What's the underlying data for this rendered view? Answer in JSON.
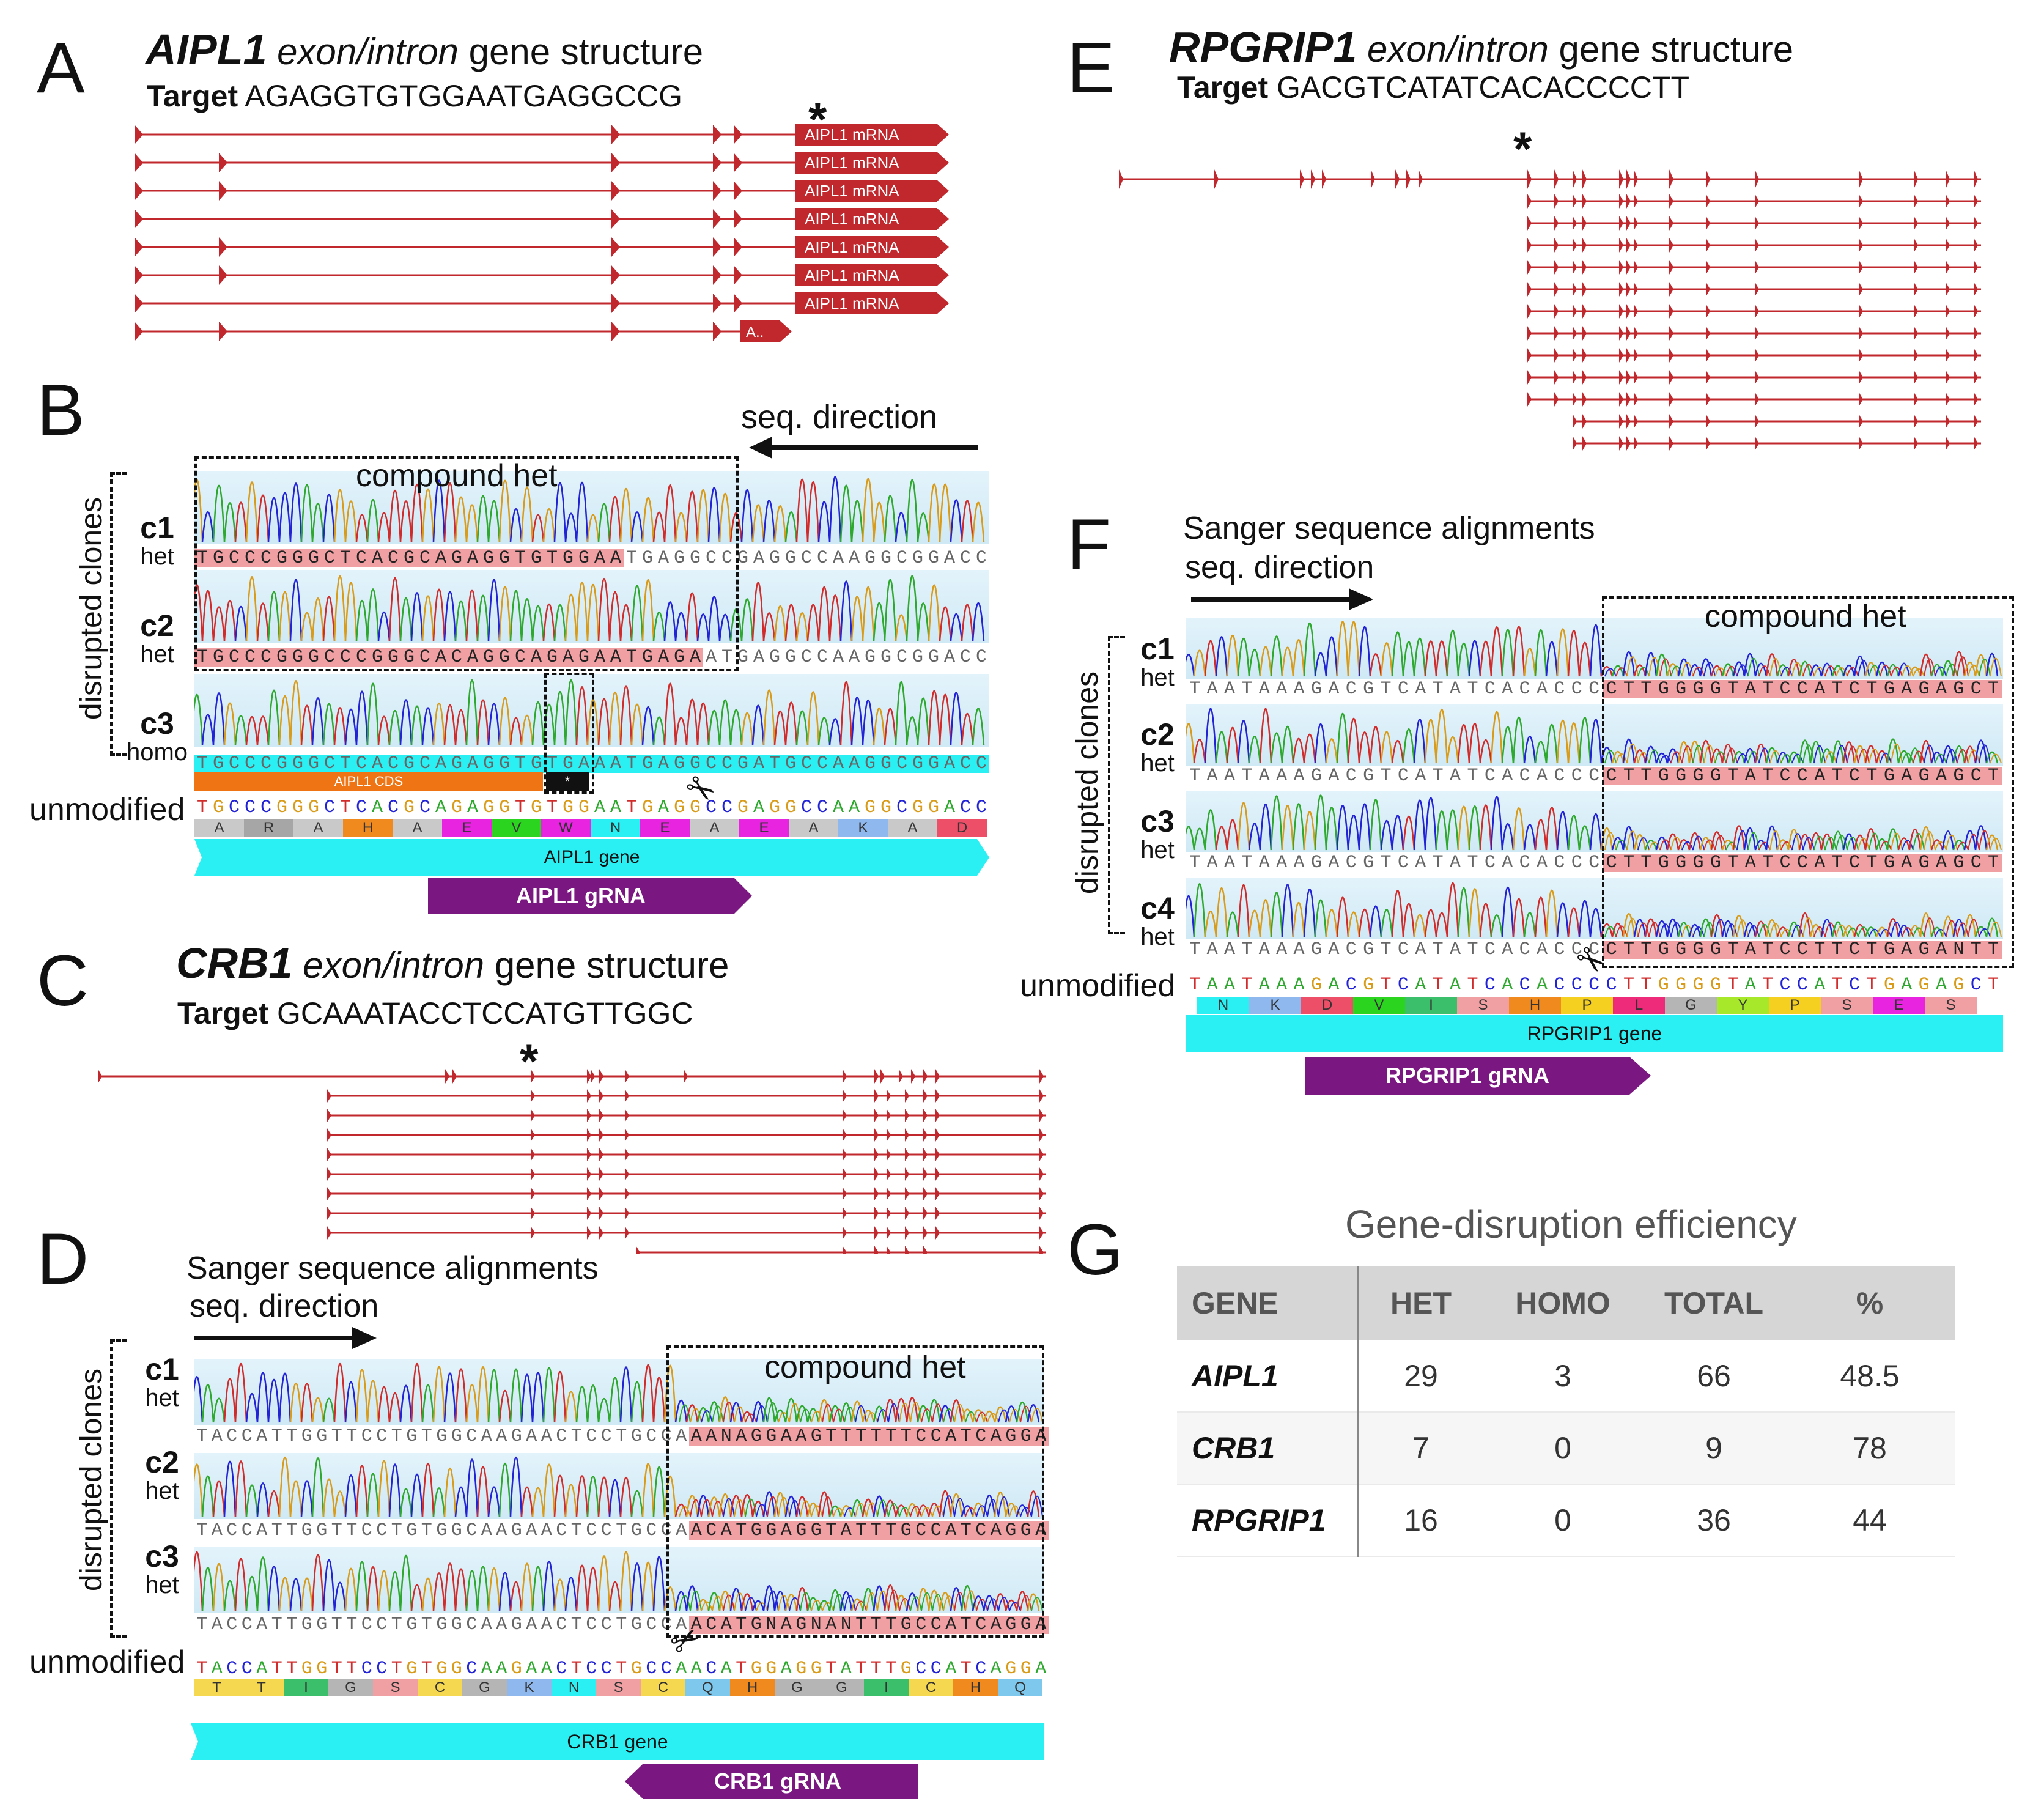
{
  "panels": {
    "A": {
      "label": "A",
      "gene": "AIPL1",
      "title_rest": "exon/intron",
      "title_tail": "gene structure",
      "target_label": "Target",
      "target_seq": "AGAGGTGTGGAATGAGGCCG",
      "mrna_label": "AIPL1 mRNA",
      "short_label": "A..",
      "star": "*"
    },
    "B": {
      "label": "B",
      "seq_direction": "seq. direction",
      "compound_het": "compound het",
      "disrupted": "disrupted clones",
      "unmodified": "unmodified",
      "clones": [
        {
          "name": "c1",
          "zyg": "het",
          "seq": "TGCCCGGGCTCACGCAGAGGTGTGGAATGAGGCCGAGGCCAAGGCGGACC"
        },
        {
          "name": "c2",
          "zyg": "het",
          "seq": "TGCCCGGGCCCGGGCACAGGCAGAGAATGAGAATGAGGCCAAGGCGGACC"
        },
        {
          "name": "c3",
          "zyg": "homo",
          "seq": "TGCCCGGGCTCACGCAGAGGTGTGAAATGAGGCCGATGCCAAGGCGGACC"
        }
      ],
      "unmodified_seq": "TGCCCGGGCTCACGCAGAGGTGTGGAATGAGGCCGAGGCCAAGGCGGACC",
      "cds_label": "AIPL1 CDS",
      "stop_label": "*",
      "aa": [
        "A",
        "R",
        "A",
        "H",
        "A",
        "E",
        "V",
        "W",
        "N",
        "E",
        "A",
        "E",
        "A",
        "K",
        "A",
        "D"
      ],
      "gene_bar": "AIPL1 gene",
      "grna_bar": "AIPL1 gRNA"
    },
    "C": {
      "label": "C",
      "gene": "CRB1",
      "title_rest": "exon/intron",
      "title_tail": "gene structure",
      "target_label": "Target",
      "target_seq": "GCAAATACCTCCATGTTGGC",
      "star": "*"
    },
    "D": {
      "label": "D",
      "heading": "Sanger sequence alignments",
      "seq_direction": "seq. direction",
      "compound_het": "compound het",
      "disrupted": "disrupted clones",
      "unmodified": "unmodified",
      "clones": [
        {
          "name": "c1",
          "zyg": "het",
          "seq_a": "TACCATTGGTTCCTGTGGCAAGAACTCCTGCCA",
          "seq_b": "AANAGGAAGTTTTTTCCATCAGGA"
        },
        {
          "name": "c2",
          "zyg": "het",
          "seq_a": "TACCATTGGTTCCTGTGGCAAGAACTCCTGCCA",
          "seq_b": "ACATGGAGGTATTTGCCATCAGGA"
        },
        {
          "name": "c3",
          "zyg": "het",
          "seq_a": "TACCATTGGTTCCTGTGGCAAGAACTCCTGCCA",
          "seq_b": "ACATGNAGNANTTTGCCATCAGGA"
        }
      ],
      "unmodified_seq": "TACCATTGGTTCCTGTGGCAAGAACTCCTGCCAACATGGAGGTATTTGCCATCAGGA",
      "aa": [
        "T",
        "T",
        "I",
        "G",
        "S",
        "C",
        "G",
        "K",
        "N",
        "S",
        "C",
        "Q",
        "H",
        "G",
        "G",
        "I",
        "C",
        "H",
        "Q"
      ],
      "gene_bar": "CRB1 gene",
      "grna_bar": "CRB1 gRNA"
    },
    "E": {
      "label": "E",
      "gene": "RPGRIP1",
      "title_rest": "exon/intron",
      "title_tail": "gene structure",
      "target_label": "Target",
      "target_seq": "GACGTCATATCACACCCCTT",
      "star": "*"
    },
    "F": {
      "label": "F",
      "heading": "Sanger sequence alignments",
      "seq_direction": "seq. direction",
      "compound_het": "compound het",
      "disrupted": "disrupted clones",
      "unmodified": "unmodified",
      "clones": [
        {
          "name": "c1",
          "zyg": "het",
          "seq_a": "TAATAAAGACGTCATATCACACCC",
          "seq_b": "CTTGGGGTATCCATCTGAGAGCT"
        },
        {
          "name": "c2",
          "zyg": "het",
          "seq_a": "TAATAAAGACGTCATATCACACCC",
          "seq_b": "CTTGGGGTATCCATCTGAGAGCT"
        },
        {
          "name": "c3",
          "zyg": "het",
          "seq_a": "TAATAAAGACGTCATATCACACCC",
          "seq_b": "CTTGGGGTATCCATCTGAGAGCT"
        },
        {
          "name": "c4",
          "zyg": "het",
          "seq_a": "TAATAAAGACGTCATATCACACCC",
          "seq_b": "CTTGGGGTATCCTTCTGAGANTT"
        }
      ],
      "unmodified_seq": "TAATAAAGACGTCATATCACACCCCTTGGGGTATCCATCTGAGAGCT",
      "aa": [
        "N",
        "K",
        "D",
        "V",
        "I",
        "S",
        "H",
        "P",
        "L",
        "G",
        "Y",
        "P",
        "S",
        "E",
        "S"
      ],
      "gene_bar": "RPGRIP1 gene",
      "grna_bar": "RPGRIP1 gRNA"
    },
    "G": {
      "label": "G",
      "title": "Gene-disruption efficiency",
      "headers": [
        "GENE",
        "HET",
        "HOMO",
        "TOTAL",
        "%"
      ],
      "rows": [
        [
          "AIPL1",
          "29",
          "3",
          "66",
          "48.5"
        ],
        [
          "CRB1",
          "7",
          "0",
          "9",
          "78"
        ],
        [
          "RPGRIP1",
          "16",
          "0",
          "36",
          "44"
        ]
      ]
    }
  },
  "colors": {
    "exon": "#c0282d",
    "gene_bar": "#2af0f4",
    "grna_bar": "#7b1780",
    "cds_bar": "#ee7414",
    "highlight": "#f0a0a3",
    "A": "#2ea82e",
    "C": "#2323d6",
    "G": "#d89b1a",
    "T": "#d12c2c",
    "N": "#777777"
  }
}
